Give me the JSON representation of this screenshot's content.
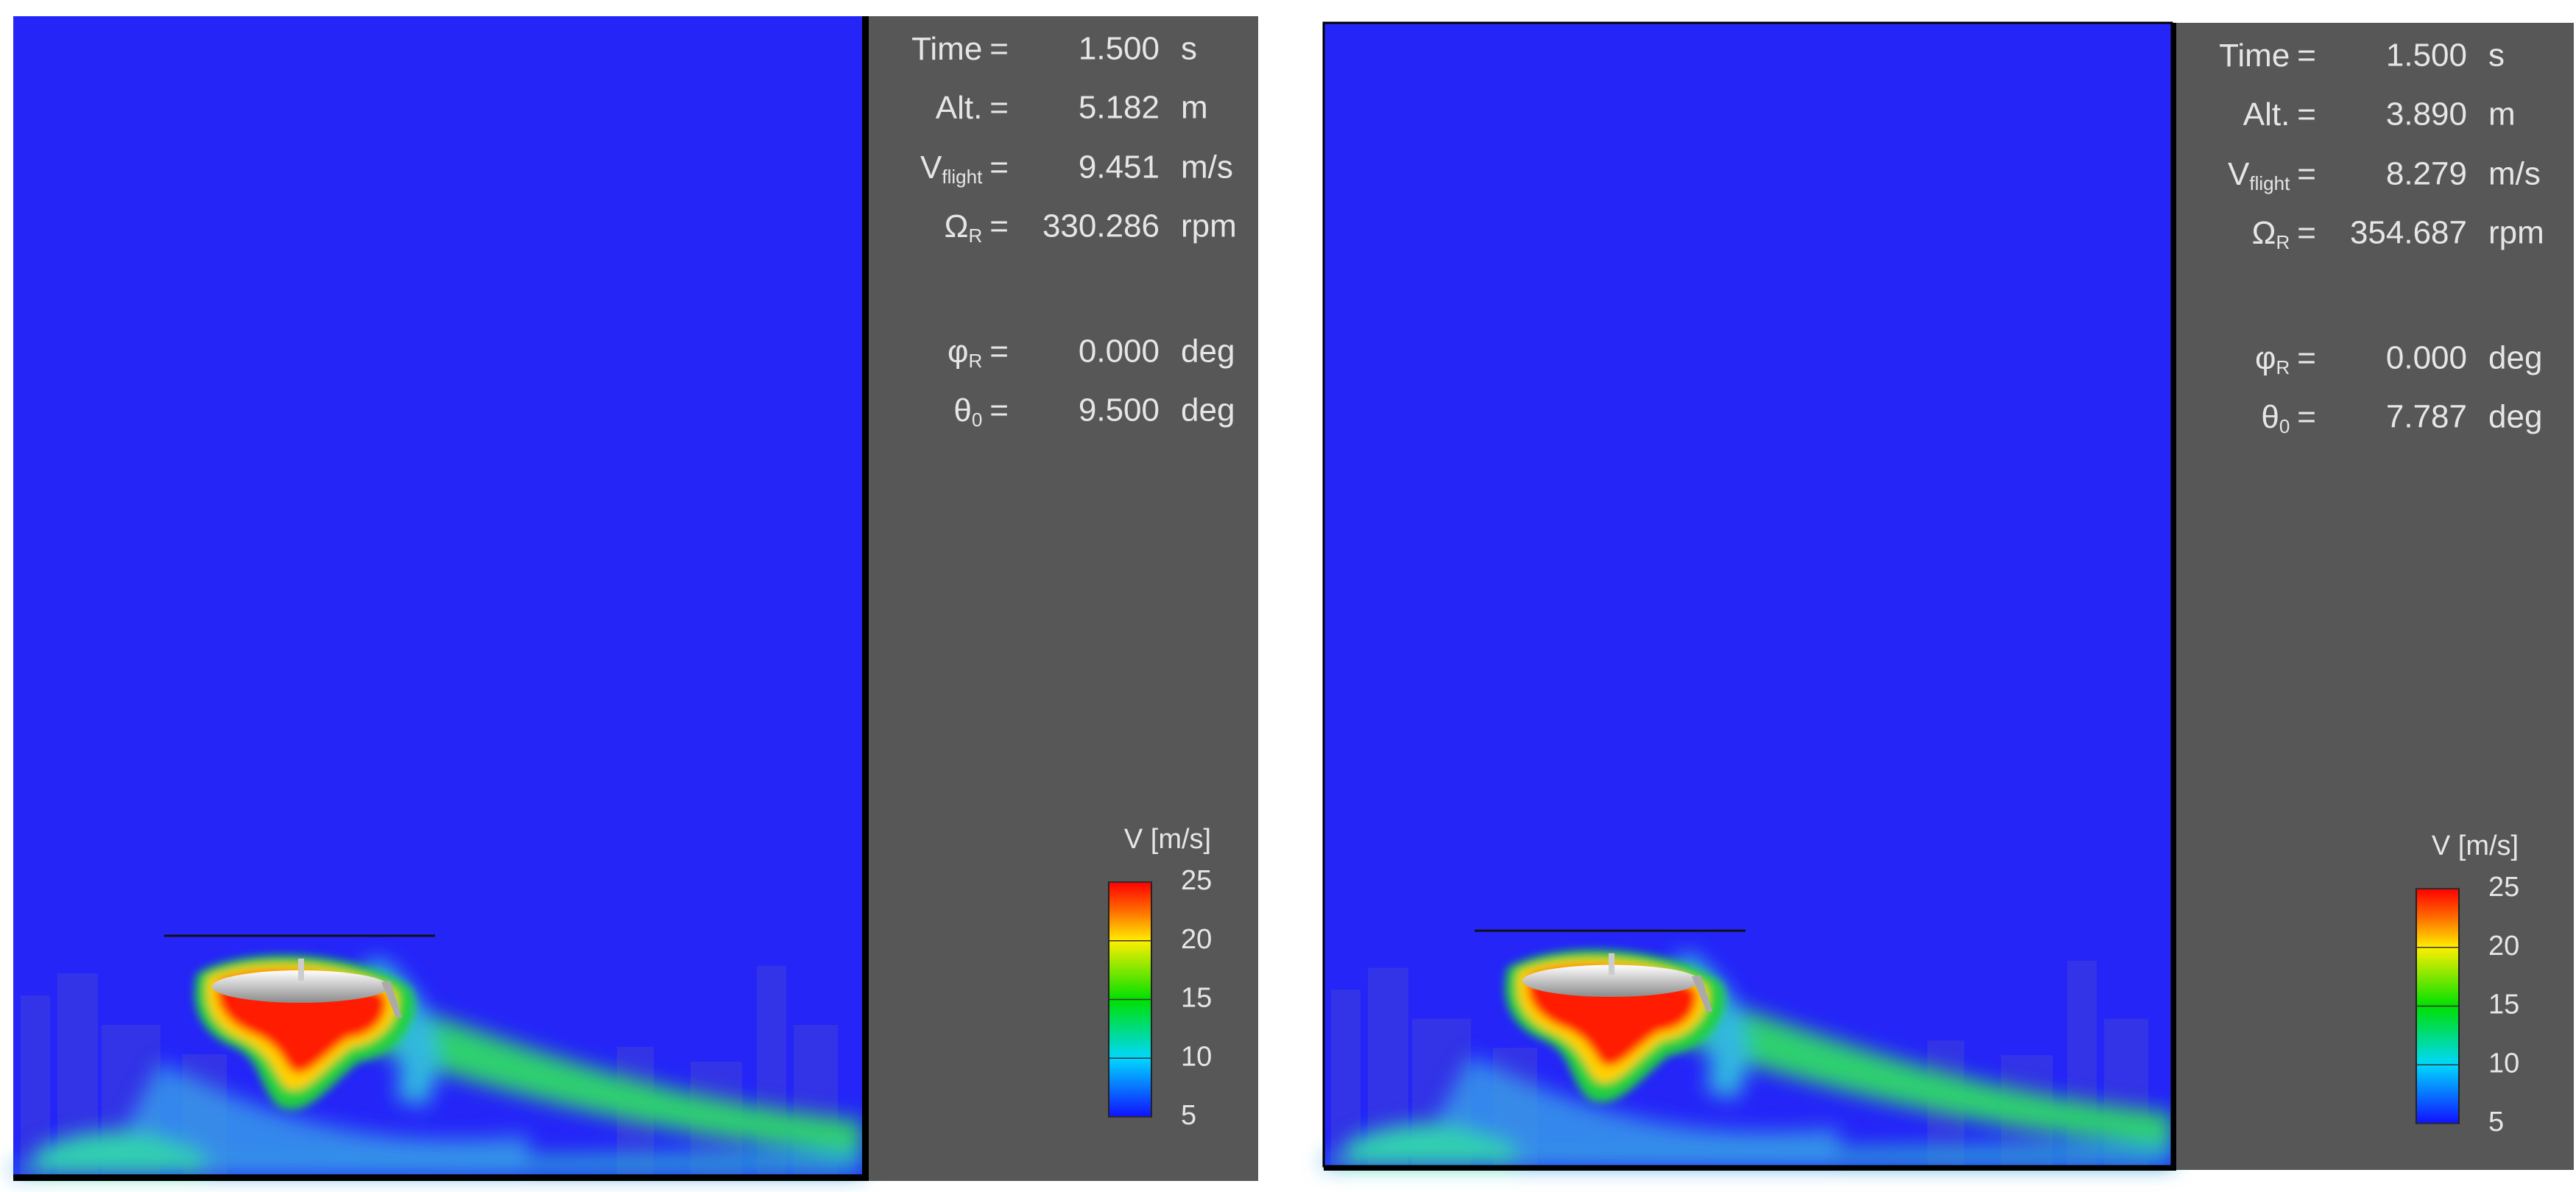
{
  "panels": [
    {
      "readout": [
        {
          "symbol": "Time",
          "sign": "=",
          "value": "1.500",
          "unit": "s"
        },
        {
          "symbol": "Alt.",
          "sign": "=",
          "value": "5.182",
          "unit": "m"
        },
        {
          "symbol": "V",
          "subscript": "flight",
          "sign": "=",
          "value": "9.451",
          "unit": "m/s"
        },
        {
          "symbol": "Ω",
          "subscript": "R",
          "sign": "=",
          "value": "330.286",
          "unit": "rpm"
        },
        {
          "symbol": "φ",
          "subscript": "R",
          "sign": "=",
          "value": "0.000",
          "unit": "deg"
        },
        {
          "symbol": "θ",
          "subscript": "0",
          "sign": "=",
          "value": "9.500",
          "unit": "deg"
        }
      ],
      "colorbar": {
        "title": "V [m/s]",
        "ticks": [
          25,
          20,
          15,
          10,
          5
        ]
      }
    },
    {
      "readout": [
        {
          "symbol": "Time",
          "sign": "=",
          "value": "1.500",
          "unit": "s"
        },
        {
          "symbol": "Alt.",
          "sign": "=",
          "value": "3.890",
          "unit": "m"
        },
        {
          "symbol": "V",
          "subscript": "flight",
          "sign": "=",
          "value": "8.279",
          "unit": "m/s"
        },
        {
          "symbol": "Ω",
          "subscript": "R",
          "sign": "=",
          "value": "354.687",
          "unit": "rpm"
        },
        {
          "symbol": "φ",
          "subscript": "R",
          "sign": "=",
          "value": "0.000",
          "unit": "deg"
        },
        {
          "symbol": "θ",
          "subscript": "0",
          "sign": "=",
          "value": "7.787",
          "unit": "deg"
        }
      ],
      "colorbar": {
        "title": "V [m/s]",
        "ticks": [
          25,
          20,
          15,
          10,
          5
        ]
      }
    }
  ]
}
